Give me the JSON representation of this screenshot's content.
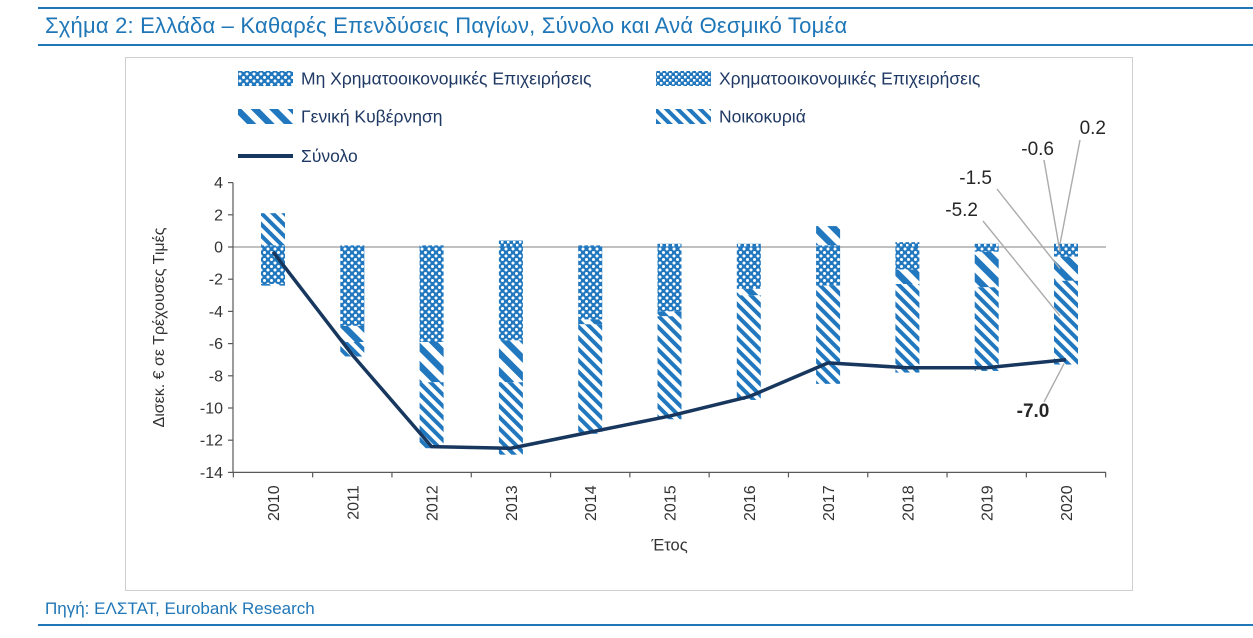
{
  "header": {
    "title": "Σχήμα 2: Ελλάδα – Καθαρές Επενδύσεις Παγίων, Σύνολο και Ανά Θεσμικό Τομέα"
  },
  "footer": {
    "source": "Πηγή: ΕΛΣΤΑΤ, Eurobank Research"
  },
  "colors": {
    "accent_blue": "#2077B8",
    "bar_blue": "#2278BE",
    "line_navy": "#17375E",
    "legend_text": "#1F3864",
    "annotation_gray": "#ABABAB"
  },
  "chart_data": {
    "type": "bar",
    "stacked": true,
    "title": "",
    "xlabel": "Έτος",
    "ylabel": "Δισεκ. € σε Τρέχουσες Τιμές",
    "ylim": [
      -14,
      4
    ],
    "ytick_step": 2,
    "grid": "zero-line-only",
    "legend_position": "top-left-inside",
    "categories": [
      "2010",
      "2011",
      "2012",
      "2013",
      "2014",
      "2015",
      "2016",
      "2017",
      "2018",
      "2019",
      "2020"
    ],
    "series": [
      {
        "name": "Μη Χρηματοοικονομικές Επιχειρήσεις",
        "pattern": "dots",
        "values": [
          -2.3,
          -4.9,
          -5.9,
          -5.8,
          -4.5,
          -4.0,
          -2.6,
          -2.4,
          -1.4,
          -0.3,
          -0.6
        ]
      },
      {
        "name": "Χρηματοοικονομικές Επιχειρήσεις",
        "pattern": "fine-check",
        "values": [
          0.1,
          0.1,
          0.1,
          0.4,
          0.1,
          0.2,
          0.2,
          0.1,
          0.3,
          0.2,
          0.2
        ]
      },
      {
        "name": "Γενική Κυβέρνηση",
        "pattern": "wide-diagonal",
        "values": [
          -0.1,
          -1.0,
          -2.5,
          -2.6,
          -0.3,
          -0.3,
          -0.4,
          1.2,
          -0.9,
          -2.2,
          -1.5
        ]
      },
      {
        "name": "Νοικοκυριά",
        "pattern": "dense-diagonal",
        "values": [
          2.0,
          -0.9,
          -4.1,
          -4.5,
          -6.8,
          -6.4,
          -6.5,
          -6.1,
          -5.5,
          -5.2,
          -5.2
        ]
      }
    ],
    "line_series": {
      "name": "Σύνολο",
      "values": [
        -0.3,
        -6.7,
        -12.4,
        -12.5,
        -11.5,
        -10.5,
        -9.3,
        -7.2,
        -7.5,
        -7.5,
        -7.0
      ]
    },
    "annotations": [
      {
        "text": "-5.2",
        "series": "Νοικοκυριά",
        "year": "2020"
      },
      {
        "text": "-1.5",
        "series": "Γενική Κυβέρνηση",
        "year": "2020"
      },
      {
        "text": "-0.6",
        "series": "Μη Χρηματοοικονομικές Επιχειρήσεις",
        "year": "2020"
      },
      {
        "text": "0.2",
        "series": "Χρηματοοικονομικές Επιχειρήσεις",
        "year": "2020"
      },
      {
        "text": "-7.0",
        "series": "Σύνολο",
        "year": "2020"
      }
    ]
  }
}
